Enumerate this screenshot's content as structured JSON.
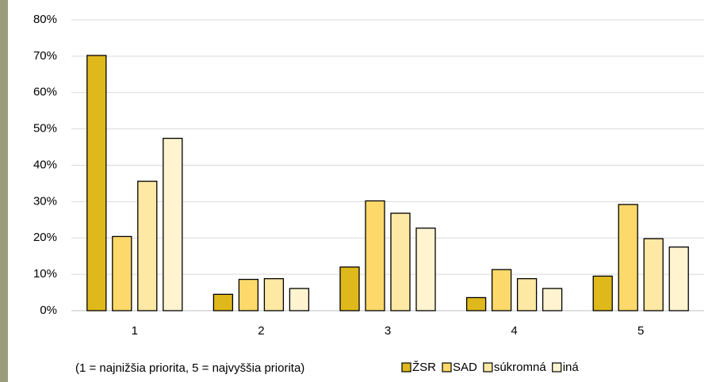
{
  "chart_data": {
    "type": "bar",
    "annotation": "(1 = najnižšia priorita, 5 = najvyššia priorita)",
    "categories": [
      "1",
      "2",
      "3",
      "4",
      "5"
    ],
    "series": [
      {
        "name": "ŽSR",
        "color": "#dfb81c",
        "values": [
          70.2,
          4.5,
          12.0,
          3.6,
          9.5
        ]
      },
      {
        "name": "SAD",
        "color": "#fcd96a",
        "values": [
          20.4,
          8.6,
          30.2,
          11.3,
          29.2
        ]
      },
      {
        "name": "súkromná",
        "color": "#fde8a4",
        "values": [
          35.6,
          8.8,
          26.8,
          8.8,
          19.8
        ]
      },
      {
        "name": "iná",
        "color": "#fff3d0",
        "values": [
          47.4,
          6.1,
          22.7,
          6.1,
          17.5
        ]
      }
    ],
    "ylim": [
      0,
      80
    ],
    "yticks": [
      {
        "value": 0,
        "label": "0%"
      },
      {
        "value": 10,
        "label": "10%"
      },
      {
        "value": 20,
        "label": "20%"
      },
      {
        "value": 30,
        "label": "30%"
      },
      {
        "value": 40,
        "label": "40%"
      },
      {
        "value": 50,
        "label": "50%"
      },
      {
        "value": 60,
        "label": "60%"
      },
      {
        "value": 70,
        "label": "70%"
      },
      {
        "value": 80,
        "label": "80%"
      }
    ],
    "grid": true,
    "legend": "bottom"
  }
}
